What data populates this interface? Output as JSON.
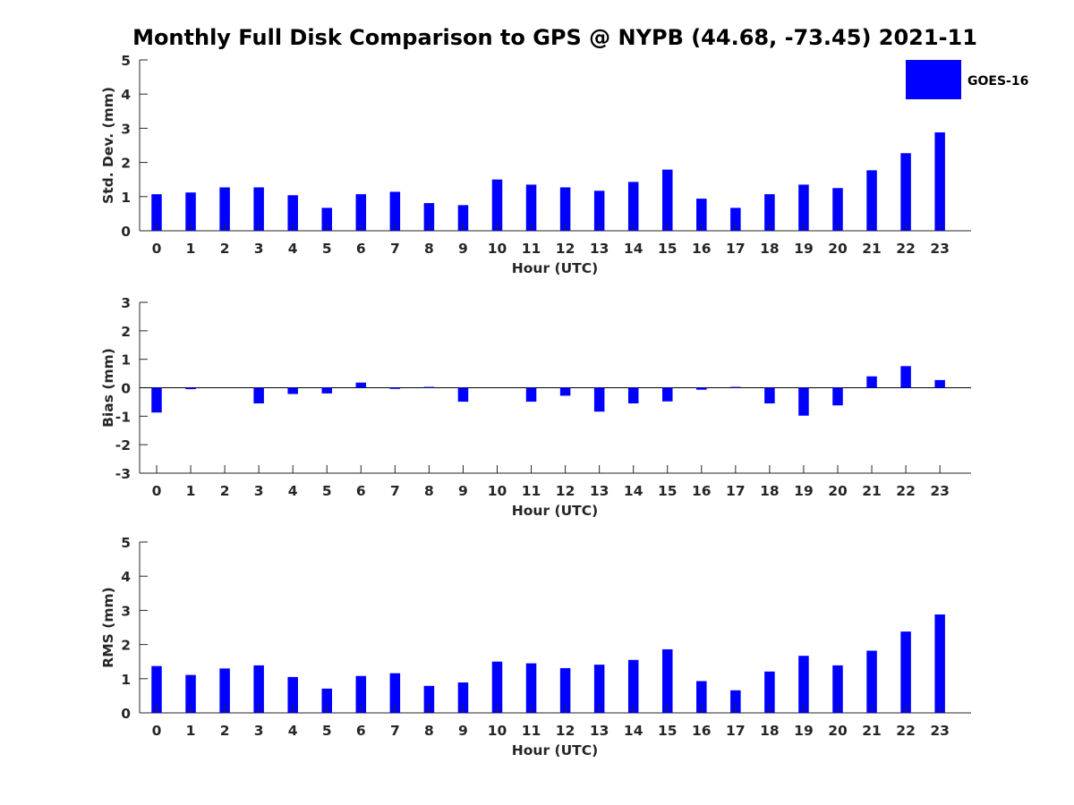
{
  "title": "Monthly Full Disk Comparison to GPS @ NYPB (44.68, -73.45) 2021-11",
  "legend": {
    "label": "GOES-16",
    "color": "#0000ff",
    "placement": "top-right"
  },
  "chart_data": [
    {
      "type": "bar",
      "xlabel": "Hour (UTC)",
      "ylabel": "Std. Dev. (mm)",
      "ylim": [
        0,
        5
      ],
      "yticks": [
        0,
        1,
        2,
        3,
        4,
        5
      ],
      "grid": false,
      "categories": [
        "0",
        "1",
        "2",
        "3",
        "4",
        "5",
        "6",
        "7",
        "8",
        "9",
        "10",
        "11",
        "12",
        "13",
        "14",
        "15",
        "16",
        "17",
        "18",
        "19",
        "20",
        "21",
        "22",
        "23"
      ],
      "series": [
        {
          "name": "GOES-16",
          "color": "#0000ff",
          "values": [
            1.07,
            1.12,
            1.27,
            1.27,
            1.04,
            0.67,
            1.07,
            1.14,
            0.81,
            0.75,
            1.5,
            1.35,
            1.27,
            1.17,
            1.43,
            1.79,
            0.94,
            0.67,
            1.07,
            1.35,
            1.25,
            1.77,
            2.27,
            2.88
          ]
        }
      ]
    },
    {
      "type": "bar",
      "xlabel": "Hour (UTC)",
      "ylabel": "Bias (mm)",
      "ylim": [
        -3,
        3
      ],
      "yticks": [
        -3,
        -2,
        -1,
        0,
        1,
        2,
        3
      ],
      "grid": false,
      "zero_line": true,
      "categories": [
        "0",
        "1",
        "2",
        "3",
        "4",
        "5",
        "6",
        "7",
        "8",
        "9",
        "10",
        "11",
        "12",
        "13",
        "14",
        "15",
        "16",
        "17",
        "18",
        "19",
        "20",
        "21",
        "22",
        "23"
      ],
      "series": [
        {
          "name": "GOES-16",
          "color": "#0000ff",
          "values": [
            -0.87,
            -0.05,
            0,
            -0.55,
            -0.22,
            -0.2,
            0.18,
            -0.04,
            0.03,
            -0.49,
            0,
            -0.49,
            -0.28,
            -0.84,
            -0.55,
            -0.48,
            -0.07,
            0.03,
            -0.55,
            -0.98,
            -0.62,
            0.4,
            0.76,
            0.27
          ]
        }
      ]
    },
    {
      "type": "bar",
      "xlabel": "Hour (UTC)",
      "ylabel": "RMS (mm)",
      "ylim": [
        0,
        5
      ],
      "yticks": [
        0,
        1,
        2,
        3,
        4,
        5
      ],
      "grid": false,
      "categories": [
        "0",
        "1",
        "2",
        "3",
        "4",
        "5",
        "6",
        "7",
        "8",
        "9",
        "10",
        "11",
        "12",
        "13",
        "14",
        "15",
        "16",
        "17",
        "18",
        "19",
        "20",
        "21",
        "22",
        "23"
      ],
      "series": [
        {
          "name": "GOES-16",
          "color": "#0000ff",
          "values": [
            1.37,
            1.11,
            1.3,
            1.39,
            1.05,
            0.71,
            1.08,
            1.16,
            0.79,
            0.89,
            1.5,
            1.45,
            1.31,
            1.41,
            1.55,
            1.86,
            0.93,
            0.66,
            1.21,
            1.67,
            1.39,
            1.82,
            2.38,
            2.88
          ]
        }
      ]
    }
  ]
}
